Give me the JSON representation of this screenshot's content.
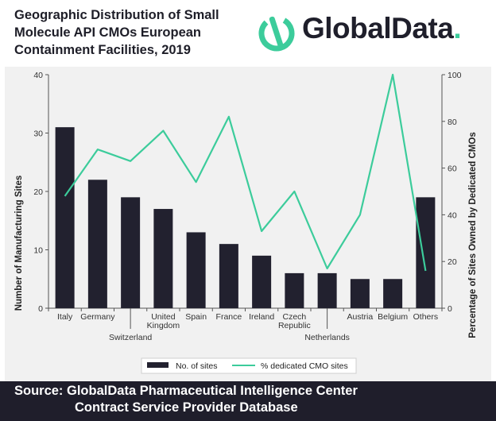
{
  "header": {
    "title_line1": "Geographic Distribution of Small",
    "title_line2": "Molecule API CMOs European",
    "title_line3": "Containment Facilities, 2019"
  },
  "logo": {
    "text": "GlobalData",
    "text_dot": "."
  },
  "footer": {
    "line1": "Source: GlobalData Pharmaceutical Intelligence Center",
    "line2": "Contract Service Provider Database"
  },
  "colors": {
    "bar": "#22212f",
    "line": "#3ccc9b",
    "background_panel": "#f1f1f1",
    "footer": "#1f1e2b"
  },
  "chart_data": {
    "type": "bar",
    "categories": [
      "Italy",
      "Germany",
      "Switzerland",
      "United Kingdom",
      "Spain",
      "France",
      "Ireland",
      "Czech Republic",
      "Netherlands",
      "Austria",
      "Belgium",
      "Others"
    ],
    "category_label_lines": [
      [
        "Italy"
      ],
      [
        "Germany"
      ],
      [
        "Switzerland"
      ],
      [
        "United",
        "Kingdom"
      ],
      [
        "Spain"
      ],
      [
        "France"
      ],
      [
        "Ireland"
      ],
      [
        "Czech",
        "Republic"
      ],
      [
        "Netherlands"
      ],
      [
        "Austria"
      ],
      [
        "Belgium"
      ],
      [
        "Others"
      ]
    ],
    "category_label_row": [
      "top",
      "top",
      "bottom",
      "top",
      "top",
      "top",
      "top",
      "top",
      "bottom",
      "top",
      "top",
      "top"
    ],
    "series": [
      {
        "name": "No. of sites",
        "type": "bar",
        "axis": "left",
        "values": [
          31,
          22,
          19,
          17,
          13,
          11,
          9,
          6,
          6,
          5,
          5,
          19
        ]
      },
      {
        "name": "% dedicated CMO sites",
        "type": "line",
        "axis": "right",
        "values": [
          48,
          68,
          63,
          76,
          54,
          82,
          33,
          50,
          17,
          40,
          100,
          16
        ]
      }
    ],
    "ylabel": "Number of Manufacturing Sites",
    "y2label": "Percentage of Sites Owned by Dedicated CMOs",
    "ylim": [
      0,
      40
    ],
    "yticks": [
      0,
      10,
      20,
      30,
      40
    ],
    "y2lim": [
      0,
      100
    ],
    "y2ticks": [
      0,
      20,
      40,
      60,
      80,
      100
    ],
    "grid": false,
    "legend_position": "bottom"
  }
}
